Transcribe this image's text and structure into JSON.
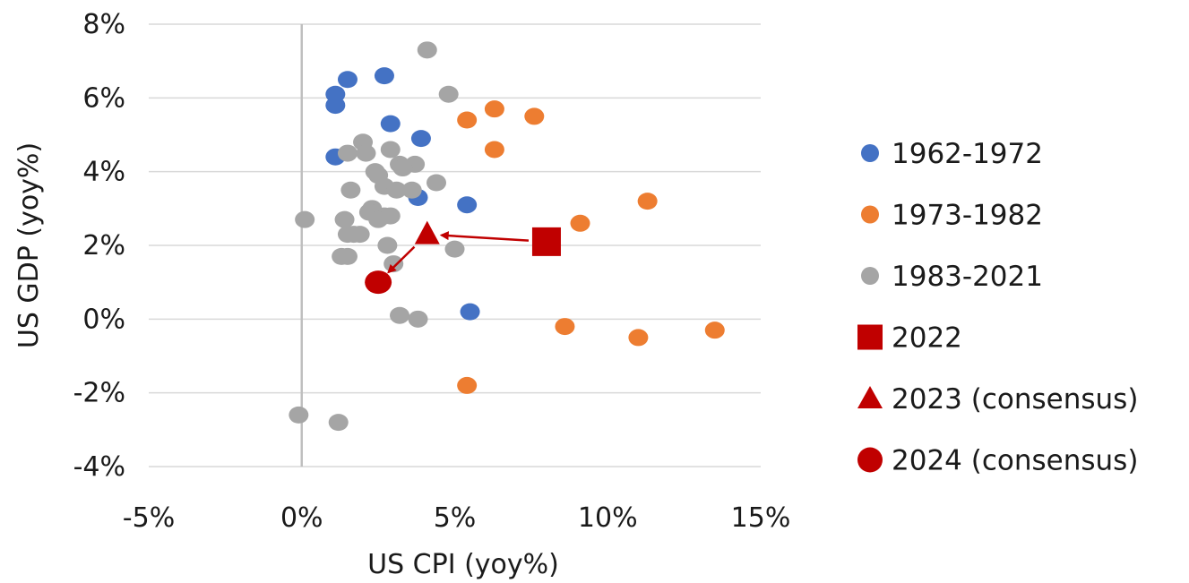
{
  "chart_data": {
    "type": "scatter",
    "xlabel": "US CPI (yoy%)",
    "ylabel": "US GDP (yoy%)",
    "xlim": [
      -5,
      15
    ],
    "ylim": [
      -4,
      8
    ],
    "xticks": [
      -5,
      0,
      5,
      10,
      15
    ],
    "yticks": [
      -4,
      -2,
      0,
      2,
      4,
      6,
      8
    ],
    "x_tick_labels": [
      "-5%",
      "0%",
      "5%",
      "10%",
      "15%"
    ],
    "y_tick_labels": [
      "-4%",
      "-2%",
      "0%",
      "2%",
      "4%",
      "6%",
      "8%"
    ],
    "grid": "horizontal",
    "legend_position": "right",
    "series": [
      {
        "name": "1962-1972",
        "color": "#4472C4",
        "marker": "circle",
        "points": [
          [
            1.1,
            6.1
          ],
          [
            1.5,
            6.5
          ],
          [
            2.7,
            6.6
          ],
          [
            1.1,
            5.8
          ],
          [
            2.9,
            5.3
          ],
          [
            3.9,
            4.9
          ],
          [
            1.1,
            4.4
          ],
          [
            3.8,
            3.3
          ],
          [
            5.4,
            3.1
          ],
          [
            5.5,
            0.2
          ]
        ]
      },
      {
        "name": "1973-1982",
        "color": "#ED7D31",
        "marker": "circle",
        "points": [
          [
            5.4,
            5.4
          ],
          [
            6.3,
            5.7
          ],
          [
            7.6,
            5.5
          ],
          [
            6.3,
            4.6
          ],
          [
            11.3,
            3.2
          ],
          [
            9.1,
            2.6
          ],
          [
            8.6,
            -0.2
          ],
          [
            11.0,
            -0.5
          ],
          [
            13.5,
            -0.3
          ],
          [
            5.4,
            -1.8
          ]
        ]
      },
      {
        "name": "1983-2021",
        "color": "#A5A5A5",
        "marker": "circle",
        "points": [
          [
            4.1,
            7.3
          ],
          [
            4.8,
            6.1
          ],
          [
            2.0,
            4.8
          ],
          [
            1.5,
            4.5
          ],
          [
            2.1,
            4.5
          ],
          [
            2.9,
            4.6
          ],
          [
            3.2,
            4.2
          ],
          [
            3.7,
            4.2
          ],
          [
            3.3,
            4.1
          ],
          [
            2.4,
            4.0
          ],
          [
            2.5,
            3.9
          ],
          [
            2.7,
            3.6
          ],
          [
            3.1,
            3.5
          ],
          [
            3.6,
            3.5
          ],
          [
            4.4,
            3.7
          ],
          [
            1.6,
            3.5
          ],
          [
            2.3,
            3.0
          ],
          [
            2.2,
            2.9
          ],
          [
            2.7,
            2.8
          ],
          [
            2.9,
            2.8
          ],
          [
            2.5,
            2.7
          ],
          [
            0.1,
            2.7
          ],
          [
            1.4,
            2.7
          ],
          [
            1.5,
            2.3
          ],
          [
            1.7,
            2.3
          ],
          [
            1.9,
            2.3
          ],
          [
            2.8,
            2.0
          ],
          [
            5.0,
            1.9
          ],
          [
            1.3,
            1.7
          ],
          [
            1.5,
            1.7
          ],
          [
            3.0,
            1.5
          ],
          [
            3.2,
            0.1
          ],
          [
            3.8,
            0.0
          ],
          [
            -0.1,
            -2.6
          ],
          [
            1.2,
            -2.8
          ]
        ]
      },
      {
        "name": "2022",
        "color": "#C00000",
        "marker": "square",
        "points": [
          [
            8.0,
            2.1
          ]
        ]
      },
      {
        "name": "2023 (consensus)",
        "color": "#C00000",
        "marker": "triangle",
        "points": [
          [
            4.1,
            2.3
          ]
        ]
      },
      {
        "name": "2024 (consensus)",
        "color": "#C00000",
        "marker": "circle-large",
        "points": [
          [
            2.5,
            1.0
          ]
        ]
      }
    ],
    "annotations": [
      {
        "type": "arrow",
        "from": [
          8.0,
          2.1
        ],
        "to": [
          4.1,
          2.3
        ],
        "color": "#C00000"
      },
      {
        "type": "arrow",
        "from": [
          4.1,
          2.3
        ],
        "to": [
          2.5,
          1.0
        ],
        "color": "#C00000"
      }
    ]
  }
}
